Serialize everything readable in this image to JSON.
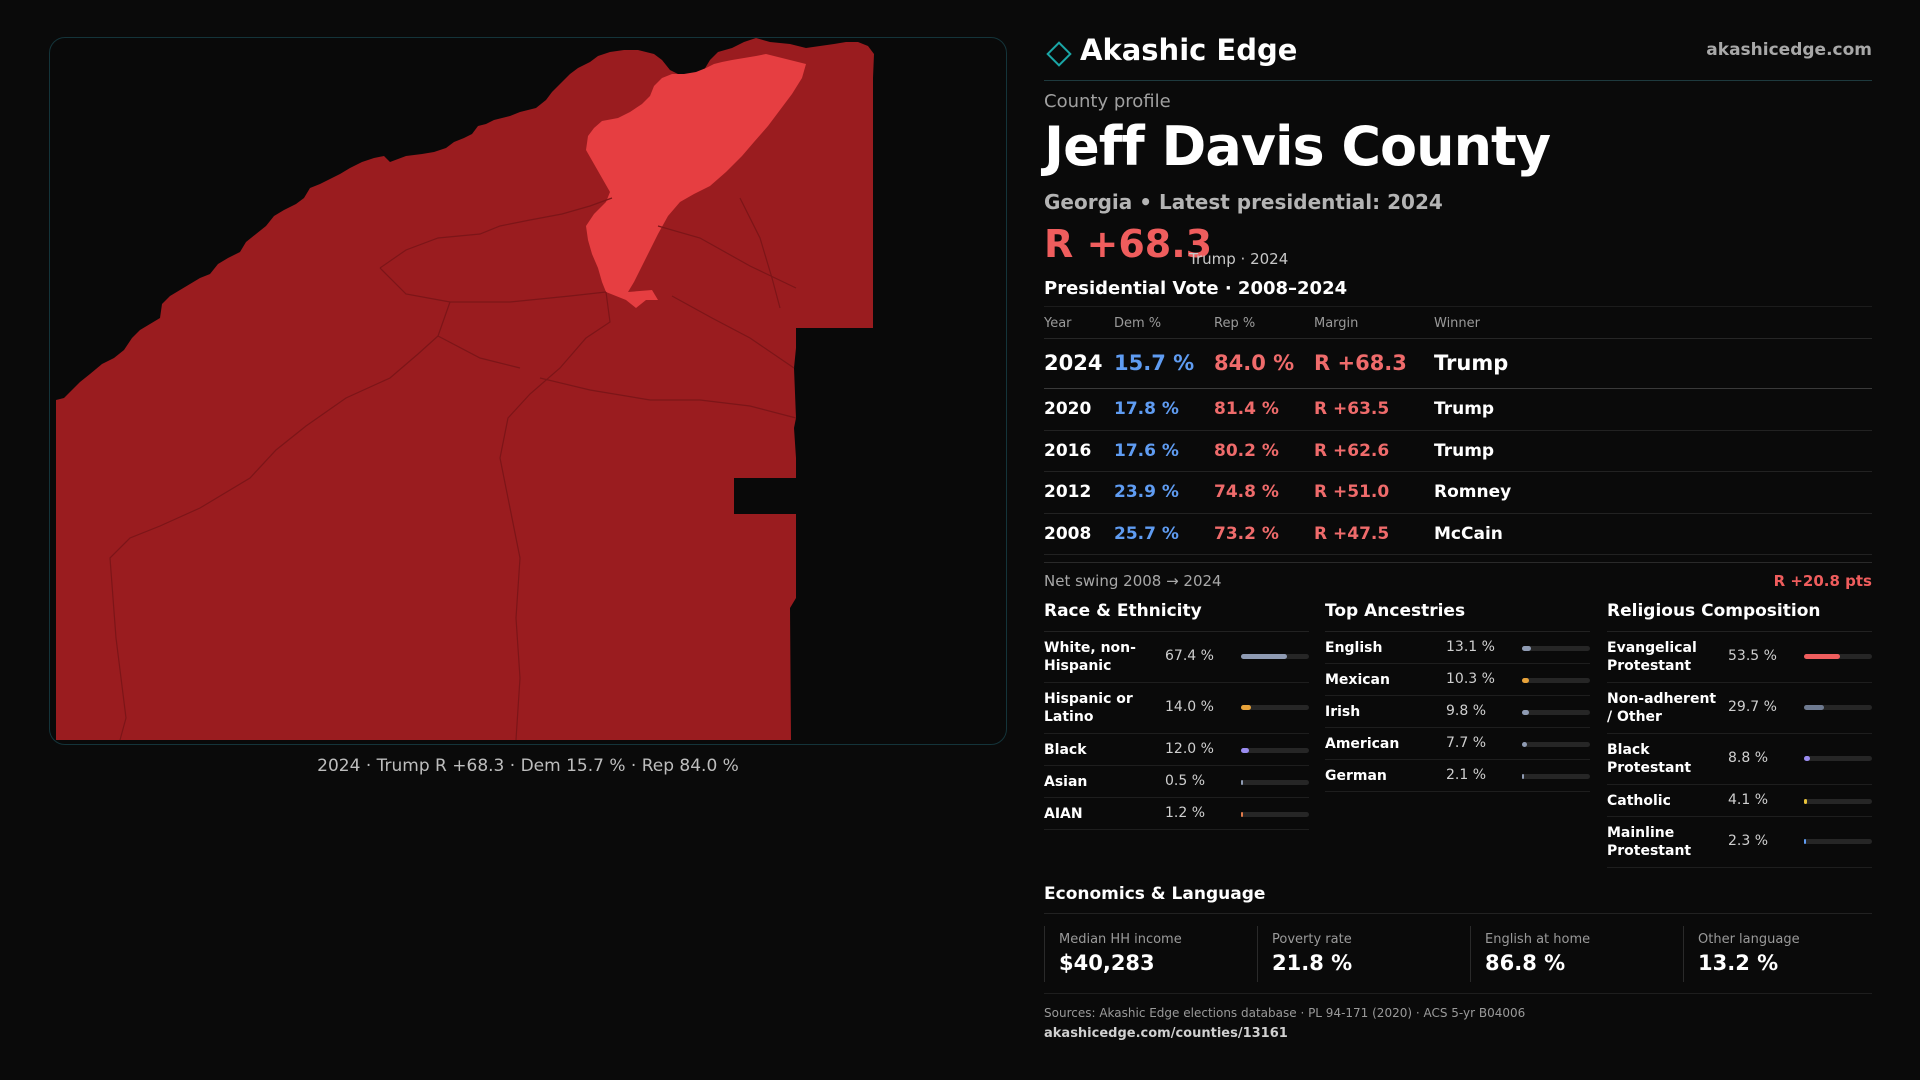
{
  "map": {
    "caption": "2024 · Trump R +68.3 · Dem 15.7 % · Rep 84.0 %",
    "colors": {
      "dark_red": "#9a1c1f",
      "light_red": "#e63e41",
      "background": "#090909",
      "border": "#14343a"
    }
  },
  "brand": {
    "name": "Akashic Edge",
    "site": "akashicedge.com",
    "logo_icon": "diamond-outline",
    "logo_color": "#1aa6a6"
  },
  "header": {
    "kicker": "County profile",
    "title": "Jeff Davis County",
    "subtitle": "Georgia • Latest presidential: 2024",
    "margin": "R +68.3",
    "margin_note": "Trump · 2024"
  },
  "vote": {
    "title": "Presidential Vote · 2008–2024",
    "columns": [
      "Year",
      "Dem %",
      "Rep %",
      "Margin",
      "Winner"
    ],
    "rows": [
      {
        "year": "2024",
        "dem": "15.7 %",
        "rep": "84.0 %",
        "margin": "R +68.3",
        "winner": "Trump"
      },
      {
        "year": "2020",
        "dem": "17.8 %",
        "rep": "81.4 %",
        "margin": "R +63.5",
        "winner": "Trump"
      },
      {
        "year": "2016",
        "dem": "17.6 %",
        "rep": "80.2 %",
        "margin": "R +62.6",
        "winner": "Trump"
      },
      {
        "year": "2012",
        "dem": "23.9 %",
        "rep": "74.8 %",
        "margin": "R +51.0",
        "winner": "Romney"
      },
      {
        "year": "2008",
        "dem": "25.7 %",
        "rep": "73.2 %",
        "margin": "R +47.5",
        "winner": "McCain"
      }
    ],
    "colors": {
      "dem": "#5f9cf2",
      "rep": "#ef6b6b"
    }
  },
  "swing": {
    "label": "Net swing 2008 → 2024",
    "value": "R +20.8 pts"
  },
  "race": {
    "title": "Race & Ethnicity",
    "items": [
      {
        "label": "White, non-Hispanic",
        "value": "67.4 %",
        "share": 0.674,
        "color": "#8f9bb3"
      },
      {
        "label": "Hispanic or Latino",
        "value": "14.0 %",
        "share": 0.14,
        "color": "#e8a33a"
      },
      {
        "label": "Black",
        "value": "12.0 %",
        "share": 0.12,
        "color": "#9a8cf0"
      },
      {
        "label": "Asian",
        "value": "0.5 %",
        "share": 0.005,
        "color": "#8f9bb3"
      },
      {
        "label": "AIAN",
        "value": "1.2 %",
        "share": 0.012,
        "color": "#e07a4a"
      }
    ]
  },
  "ancestry": {
    "title": "Top Ancestries",
    "items": [
      {
        "label": "English",
        "value": "13.1 %",
        "share": 0.131,
        "color": "#8f9bb3"
      },
      {
        "label": "Mexican",
        "value": "10.3 %",
        "share": 0.103,
        "color": "#e8a33a"
      },
      {
        "label": "Irish",
        "value": "9.8 %",
        "share": 0.098,
        "color": "#8f9bb3"
      },
      {
        "label": "American",
        "value": "7.7 %",
        "share": 0.077,
        "color": "#8f9bb3"
      },
      {
        "label": "German",
        "value": "2.1 %",
        "share": 0.021,
        "color": "#8f9bb3"
      }
    ]
  },
  "religion": {
    "title": "Religious Composition",
    "items": [
      {
        "label": "Evangelical Protestant",
        "value": "53.5 %",
        "share": 0.535,
        "color": "#ef5d5d"
      },
      {
        "label": "Non-adherent / Other",
        "value": "29.7 %",
        "share": 0.297,
        "color": "#6e7a90"
      },
      {
        "label": "Black Protestant",
        "value": "8.8 %",
        "share": 0.088,
        "color": "#9a8cf0"
      },
      {
        "label": "Catholic",
        "value": "4.1 %",
        "share": 0.041,
        "color": "#e8c23a"
      },
      {
        "label": "Mainline Protestant",
        "value": "2.3 %",
        "share": 0.023,
        "color": "#5f9cf2"
      }
    ]
  },
  "economics": {
    "title": "Economics & Language",
    "stats": [
      {
        "label": "Median HH income",
        "value": "$40,283"
      },
      {
        "label": "Poverty rate",
        "value": "21.8 %"
      },
      {
        "label": "English at home",
        "value": "86.8 %"
      },
      {
        "label": "Other language",
        "value": "13.2 %"
      }
    ]
  },
  "footer": {
    "sources": "Sources: Akashic Edge elections database · PL 94-171 (2020) · ACS 5-yr B04006",
    "url": "akashicedge.com/counties/13161"
  }
}
